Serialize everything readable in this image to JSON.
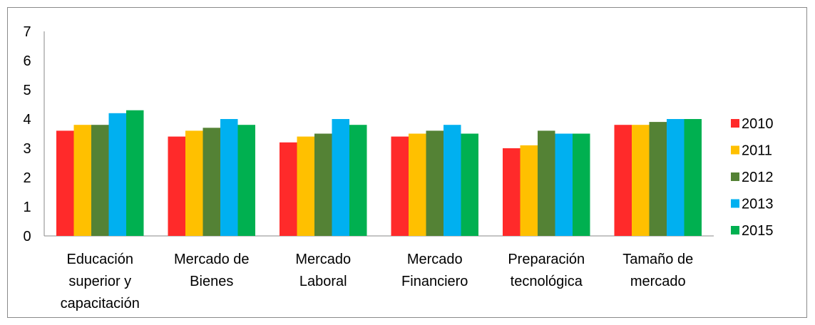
{
  "chart_data": {
    "type": "bar",
    "categories": [
      [
        "Educación",
        "superior y",
        "capacitación"
      ],
      [
        "Mercado de",
        "Bienes"
      ],
      [
        "Mercado",
        "Laboral"
      ],
      [
        "Mercado",
        "Financiero"
      ],
      [
        "Preparación",
        "tecnológica"
      ],
      [
        "Tamaño de",
        "mercado"
      ]
    ],
    "ylim": [
      0,
      7
    ],
    "yticks": [
      "0",
      "1",
      "2",
      "3",
      "4",
      "5",
      "6",
      "7"
    ],
    "grid": false,
    "legend_position": "right",
    "series": [
      {
        "name": "2010",
        "color": "#ff2a2a",
        "values": [
          3.6,
          3.4,
          3.2,
          3.4,
          3.0,
          3.8
        ]
      },
      {
        "name": "2011",
        "color": "#ffc000",
        "values": [
          3.8,
          3.6,
          3.4,
          3.5,
          3.1,
          3.8
        ]
      },
      {
        "name": "2012",
        "color": "#548235",
        "values": [
          3.8,
          3.7,
          3.5,
          3.6,
          3.6,
          3.9
        ]
      },
      {
        "name": "2013",
        "color": "#00b0f0",
        "values": [
          4.2,
          4.0,
          4.0,
          3.8,
          3.5,
          4.0
        ]
      },
      {
        "name": "2015",
        "color": "#00b050",
        "values": [
          4.3,
          3.8,
          3.8,
          3.5,
          3.5,
          4.0
        ]
      }
    ]
  }
}
